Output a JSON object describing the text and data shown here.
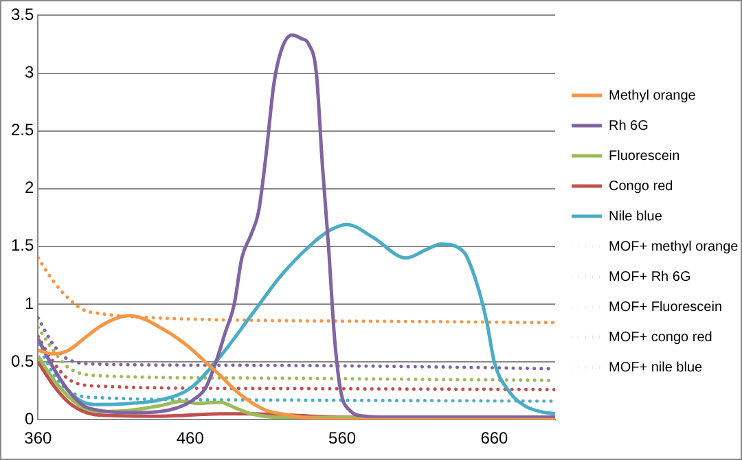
{
  "chart_data": {
    "type": "line",
    "xlim": [
      360,
      700
    ],
    "xticks": [
      360,
      460,
      560,
      660
    ],
    "ylim": [
      0,
      3.5
    ],
    "yticks": [
      0,
      0.5,
      1,
      1.5,
      2,
      2.5,
      3,
      3.5
    ],
    "grid": "y",
    "legend": "right",
    "marker": "none",
    "series": [
      {
        "name": "Methyl orange",
        "color": "#f79646",
        "line_style": "solid",
        "x": [
          360,
          370,
          380,
          390,
          400,
          410,
          420,
          430,
          440,
          450,
          460,
          470,
          480,
          490,
          500,
          510,
          520,
          540,
          560,
          600,
          700
        ],
        "values": [
          0.6,
          0.57,
          0.6,
          0.7,
          0.8,
          0.87,
          0.9,
          0.87,
          0.8,
          0.72,
          0.62,
          0.5,
          0.38,
          0.25,
          0.15,
          0.08,
          0.05,
          0.01,
          0.0,
          0.0,
          0.0
        ]
      },
      {
        "name": "Rh 6G",
        "color": "#8064a2",
        "line_style": "solid",
        "x": [
          360,
          370,
          380,
          390,
          400,
          420,
          440,
          455,
          465,
          470,
          477,
          483,
          489,
          494,
          500,
          505,
          510,
          515,
          520,
          527,
          533,
          538,
          543,
          547,
          551,
          555,
          559,
          565,
          575,
          600,
          700
        ],
        "values": [
          0.7,
          0.45,
          0.25,
          0.12,
          0.08,
          0.06,
          0.07,
          0.12,
          0.2,
          0.27,
          0.5,
          0.75,
          1.0,
          1.4,
          1.6,
          1.8,
          2.3,
          2.9,
          3.2,
          3.33,
          3.3,
          3.25,
          3.0,
          2.2,
          1.5,
          0.7,
          0.25,
          0.08,
          0.03,
          0.02,
          0.02
        ]
      },
      {
        "name": "Fluorescein",
        "color": "#9bbb59",
        "line_style": "solid",
        "x": [
          360,
          370,
          380,
          390,
          400,
          420,
          440,
          455,
          465,
          480,
          490,
          500,
          520,
          700
        ],
        "values": [
          0.55,
          0.35,
          0.2,
          0.1,
          0.07,
          0.08,
          0.12,
          0.16,
          0.14,
          0.15,
          0.1,
          0.05,
          0.02,
          0.01
        ]
      },
      {
        "name": "Congo red",
        "color": "#c0504d",
        "line_style": "solid",
        "x": [
          360,
          370,
          380,
          390,
          400,
          440,
          480,
          500,
          540,
          560,
          700
        ],
        "values": [
          0.5,
          0.3,
          0.15,
          0.07,
          0.04,
          0.03,
          0.05,
          0.05,
          0.03,
          0.02,
          0.02
        ]
      },
      {
        "name": "Nile blue",
        "color": "#4bacc6",
        "line_style": "solid",
        "x": [
          360,
          370,
          380,
          390,
          400,
          420,
          440,
          460,
          480,
          500,
          520,
          540,
          552,
          563,
          580,
          602,
          615,
          625,
          640,
          648,
          655,
          660,
          670,
          680,
          690,
          700
        ],
        "values": [
          0.7,
          0.45,
          0.25,
          0.15,
          0.13,
          0.14,
          0.17,
          0.27,
          0.55,
          0.9,
          1.25,
          1.52,
          1.64,
          1.69,
          1.58,
          1.4,
          1.47,
          1.52,
          1.45,
          1.2,
          0.85,
          0.5,
          0.24,
          0.12,
          0.07,
          0.05
        ]
      },
      {
        "name": "MOF+ methyl orange",
        "color": "#f79646",
        "line_style": "dotted",
        "x": [
          360,
          370,
          380,
          390,
          400,
          440,
          500,
          600,
          700
        ],
        "values": [
          1.4,
          1.2,
          1.05,
          0.95,
          0.92,
          0.88,
          0.86,
          0.85,
          0.84
        ]
      },
      {
        "name": "MOF+ Rh 6G",
        "color": "#8064a2",
        "line_style": "dotted",
        "x": [
          360,
          370,
          380,
          400,
          500,
          600,
          700
        ],
        "values": [
          0.88,
          0.65,
          0.52,
          0.48,
          0.47,
          0.46,
          0.44
        ]
      },
      {
        "name": "MOF+ Fluorescein",
        "color": "#9bbb59",
        "line_style": "dotted",
        "x": [
          360,
          370,
          380,
          400,
          500,
          600,
          700
        ],
        "values": [
          0.8,
          0.6,
          0.45,
          0.38,
          0.36,
          0.35,
          0.34
        ]
      },
      {
        "name": "MOF+ congo red",
        "color": "#c0504d",
        "line_style": "dotted",
        "x": [
          360,
          370,
          380,
          400,
          500,
          700
        ],
        "values": [
          0.72,
          0.5,
          0.35,
          0.29,
          0.27,
          0.26
        ]
      },
      {
        "name": "MOF+ nile blue",
        "color": "#4bacc6",
        "line_style": "dotted",
        "x": [
          360,
          370,
          380,
          400,
          500,
          700
        ],
        "values": [
          0.65,
          0.4,
          0.25,
          0.19,
          0.17,
          0.16
        ]
      }
    ]
  }
}
